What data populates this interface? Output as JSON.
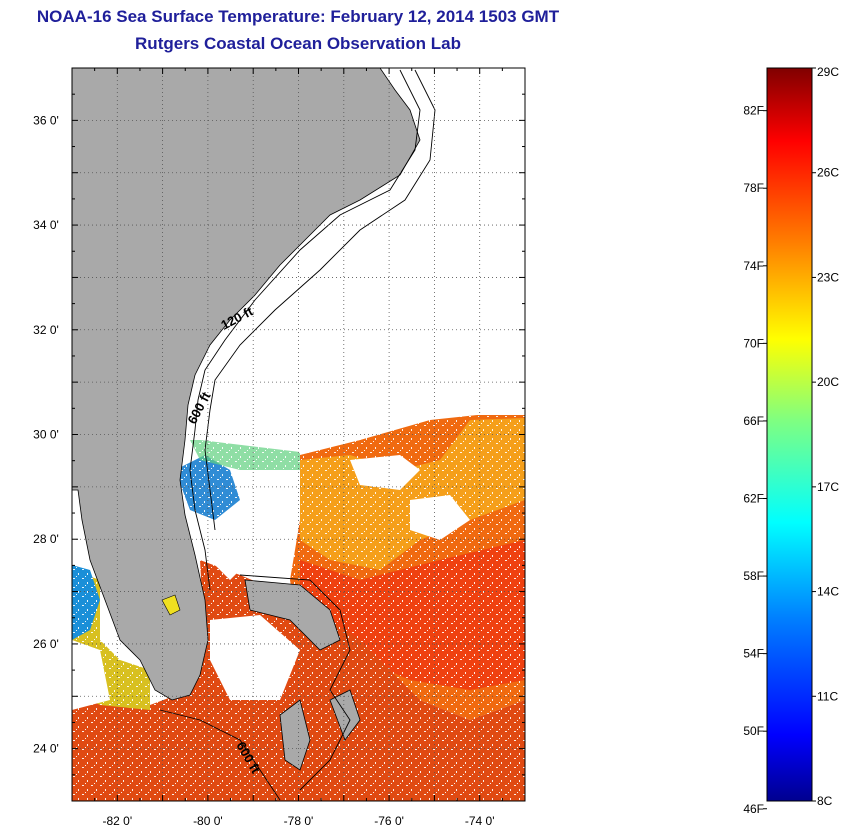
{
  "header": {
    "title": "NOAA-16 Sea Surface Temperature:  February 12, 2014 1503 GMT",
    "subtitle": "Rutgers Coastal Ocean Observation Lab"
  },
  "map": {
    "lon_range": [
      -83,
      -73
    ],
    "lat_range": [
      23,
      37
    ],
    "lon_ticks": [
      {
        "value": -82,
        "label": "-82 0'"
      },
      {
        "value": -80,
        "label": "-80 0'"
      },
      {
        "value": -78,
        "label": "-78 0'"
      },
      {
        "value": -76,
        "label": "-76 0'"
      },
      {
        "value": -74,
        "label": "-74 0'"
      }
    ],
    "lat_ticks": [
      {
        "value": 36,
        "label": "36 0'"
      },
      {
        "value": 34,
        "label": "34 0'"
      },
      {
        "value": 32,
        "label": "32 0'"
      },
      {
        "value": 30,
        "label": "30 0'"
      },
      {
        "value": 28,
        "label": "28 0'"
      },
      {
        "value": 26,
        "label": "26 0'"
      },
      {
        "value": 24,
        "label": "24 0'"
      }
    ],
    "grid": true,
    "contour_labels": [
      "120 ft",
      "600 ft",
      "600 ft"
    ],
    "land_color": "#a9a9a9",
    "ocean_missing_color": "#ffffff"
  },
  "colorbar": {
    "celsius_range": [
      8,
      29
    ],
    "fahrenheit_labels": [
      "82F",
      "78F",
      "74F",
      "70F",
      "66F",
      "62F",
      "58F",
      "54F",
      "50F",
      "46F"
    ],
    "celsius_labels": [
      "29C",
      "26C",
      "23C",
      "20C",
      "17C",
      "14C",
      "11C",
      "8C"
    ],
    "colors": [
      "#00008f",
      "#0000ff",
      "#0080ff",
      "#00ffff",
      "#80ff80",
      "#ffff00",
      "#ff8000",
      "#ff0000",
      "#800000"
    ]
  }
}
